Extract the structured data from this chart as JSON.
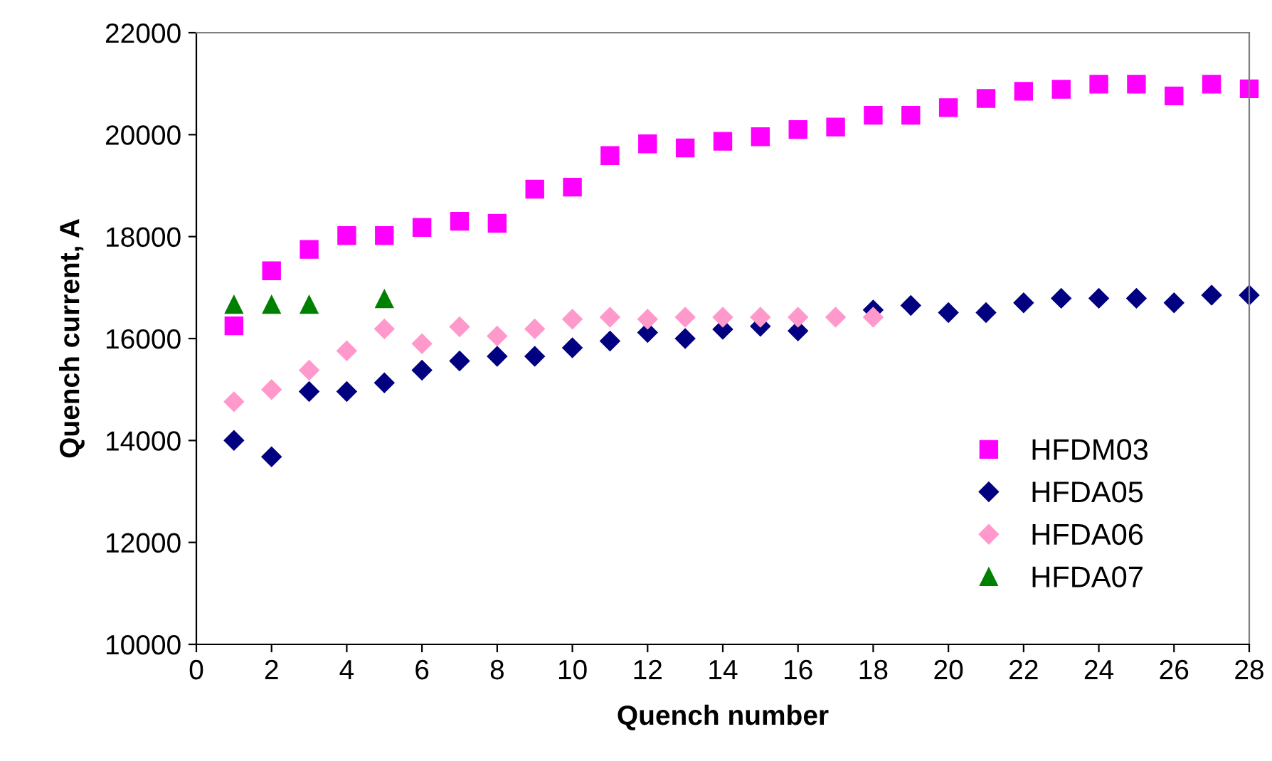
{
  "chart_data": {
    "type": "scatter",
    "xlabel": "Quench number",
    "ylabel": "Quench current, A",
    "xlim": [
      0,
      28
    ],
    "xticks": [
      0,
      2,
      4,
      6,
      8,
      10,
      12,
      14,
      16,
      18,
      20,
      22,
      24,
      26,
      28
    ],
    "ylim": [
      10000,
      22000
    ],
    "yticks": [
      10000,
      12000,
      14000,
      16000,
      18000,
      20000,
      22000
    ],
    "grid": false,
    "legend": "bottom right",
    "series": [
      {
        "name": "HFDM03",
        "color": "#ff00ff",
        "marker": "square",
        "x": [
          1,
          2,
          3,
          4,
          5,
          6,
          7,
          8,
          9,
          10,
          11,
          12,
          13,
          14,
          15,
          16,
          17,
          18,
          19,
          20,
          21,
          22,
          23,
          24,
          25,
          26,
          27,
          28
        ],
        "values": [
          16250,
          17330,
          17750,
          18020,
          18020,
          18180,
          18300,
          18260,
          18930,
          18970,
          19590,
          19820,
          19740,
          19870,
          19960,
          20100,
          20150,
          20380,
          20380,
          20530,
          20710,
          20850,
          20890,
          20990,
          20990,
          20760,
          20990,
          20900
        ]
      },
      {
        "name": "HFDA05",
        "color": "#000080",
        "marker": "diamond",
        "x": [
          1,
          2,
          3,
          4,
          5,
          6,
          7,
          8,
          9,
          10,
          11,
          12,
          13,
          14,
          15,
          16,
          17,
          18,
          19,
          20,
          21,
          22,
          23,
          24,
          25,
          26,
          27,
          28
        ],
        "values": [
          14000,
          13680,
          14960,
          14960,
          15130,
          15380,
          15560,
          15650,
          15650,
          15820,
          15950,
          16120,
          16000,
          16180,
          16240,
          16150,
          null,
          16560,
          16650,
          16510,
          16510,
          16700,
          16790,
          16790,
          16790,
          16700,
          16850,
          16850
        ]
      },
      {
        "name": "HFDA06",
        "color": "#ff99cc",
        "marker": "diamond",
        "x": [
          1,
          2,
          3,
          4,
          5,
          6,
          7,
          8,
          9,
          10,
          11,
          12,
          13,
          14,
          15,
          16,
          17,
          18
        ],
        "values": [
          14760,
          15000,
          15380,
          15760,
          16190,
          15900,
          16230,
          16050,
          16190,
          16380,
          16420,
          16380,
          16420,
          16420,
          16420,
          16420,
          16420,
          16420
        ]
      },
      {
        "name": "HFDA07",
        "color": "#008000",
        "marker": "triangle",
        "x": [
          1,
          2,
          3,
          5
        ],
        "values": [
          16670,
          16670,
          16670,
          16780
        ]
      }
    ]
  }
}
